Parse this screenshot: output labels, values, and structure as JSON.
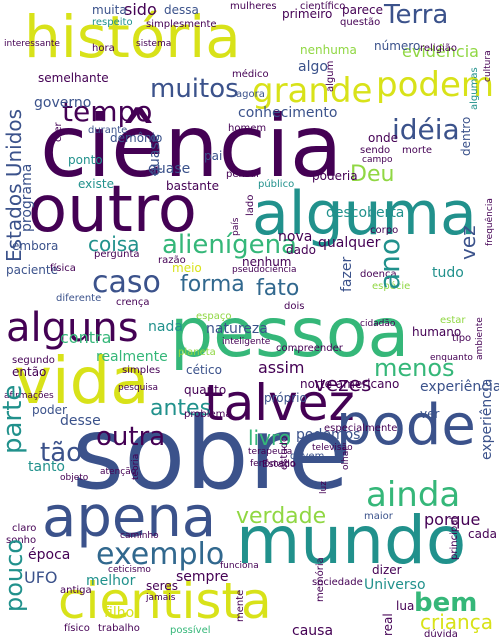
{
  "palette": {
    "background": "#ffffff",
    "purple_dark": "#440154",
    "indigo": "#3b528b",
    "blue": "#31688e",
    "teal": "#21918c",
    "green": "#35b779",
    "lime": "#90d743",
    "yellow": "#d8e219"
  },
  "words": {
    "ciencia": "ciência",
    "sobre": "sobre",
    "historia": "história",
    "pessoa": "pessoa",
    "mundo": "mundo",
    "alguma": "alguma",
    "outro": "outro",
    "vida": "vida",
    "talvez": "talvez",
    "pode": "pode",
    "apena": "apena",
    "cientista": "cientista",
    "alguns": "alguns",
    "podem": "podem",
    "terra": "Terra",
    "grande": "grande",
    "tempo": "tempo",
    "ideia": "idéia",
    "ainda": "ainda",
    "muitos": "muitos",
    "deu": "Deu",
    "alienigena": "alienígena",
    "caso": "caso",
    "forma": "forma",
    "fato": "fato",
    "exemplo": "exemplo",
    "verdade": "verdade",
    "coisa": "coisa",
    "menos": "menos",
    "vezes": "vezes",
    "antes": "antes",
    "livro": "livro",
    "outra": "outra",
    "tao": "tão",
    "parte": "parte",
    "pouco": "pouco",
    "bem": "bem",
    "crianca": "criança",
    "estados_unidos": "Estados Unidos",
    "porque": "porque",
    "ano": "ano",
    "vez": "vez",
    "evidencia": "evidência",
    "nenhuma": "nenhuma",
    "conhecimento": "conhecimento",
    "governo": "governo",
    "programa": "programa",
    "descoberta": "descoberta",
    "contra": "contra",
    "quase": "quase",
    "sido": "sido",
    "muita": "muita",
    "dessa": "dessa",
    "primeiro": "primeiro",
    "algo": "algo",
    "numero": "número",
    "realmente": "realmente",
    "assim": "assim",
    "experiencia": "experiência",
    "norte_americano": "norte americano",
    "humano": "humano",
    "ufo": "UFO",
    "epoca": "época",
    "sempre": "sempre",
    "melhor": "melhor",
    "universo": "Universo",
    "natureza": "natureza",
    "qualquer": "qualquer",
    "tudo": "tudo",
    "podemos": "podemos",
    "desse": "desse",
    "tanto": "tanto",
    "filho": "filho",
    "seres": "seres",
    "causa": "causa",
    "nada": "nada",
    "meio": "meio",
    "paciente": "paciente",
    "embora": "embora",
    "nenhum": "nenhum",
    "cetico": "cético",
    "planeta": "planeta",
    "ponto": "ponto",
    "demonio": "demônio",
    "bastante": "bastante",
    "poderia": "poderia",
    "fazer": "fazer",
    "nova": "nova",
    "dado": "dado",
    "existe": "existe",
    "quanto": "quanto",
    "proprio": "próprio",
    "durante": "durante",
    "semelhante": "semelhante",
    "respeito": "respeito",
    "simplesmente": "simplesmente",
    "mulheres": "mulheres",
    "cientifico": "científico",
    "parece": "parece",
    "questao": "questão",
    "religiao": "religião",
    "poder": "poder",
    "ver": "ver",
    "onde": "onde",
    "sendo": "sendo",
    "morte": "morte",
    "pai": "pai",
    "pensar": "pensar",
    "homem": "homem",
    "maior": "maior",
    "sociedade": "sociedade",
    "dizer": "dizer",
    "cada": "cada",
    "pergunta": "pergunta",
    "fisica": "física",
    "razao": "razão",
    "crenca": "crença",
    "diferente": "diferente",
    "entao": "então",
    "segundo": "segundo",
    "trabalho": "trabalho",
    "fisico": "físico",
    "possivel": "possível",
    "duvida": "dúvida",
    "interessante": "interessante",
    "hora": "hora",
    "medico": "médico",
    "corpo": "corpo",
    "doenca": "doença",
    "especie": "espécie",
    "publico": "público",
    "campo": "campo",
    "estar": "estar",
    "tipo": "tipo",
    "claro": "claro",
    "sonho": "sonho",
    "antiga": "antiga",
    "lua": "lua",
    "devem": "devem",
    "simples": "simples",
    "especialmente": "especialmente",
    "televisao": "televisão",
    "estado": "Estado",
    "compreender": "compreender",
    "dois": "dois",
    "geral": "geral",
    "algum": "algum",
    "espaco": "espaço",
    "agora": "agora",
    "sistema": "sistema",
    "olho": "olho",
    "mesmo": "mesmo",
    "vista": "vista",
    "lado": "lado",
    "caminho": "caminho",
    "pesquisa": "pesquisa",
    "mente": "mente",
    "certeza": "certeza",
    "quer": "quer",
    "luz": "luz",
    "ideias": "ideias",
    "estrela": "estrela",
    "memoria": "memória",
    "relato": "relato",
    "fenomeno": "fenômeno",
    "seculo": "século",
    "inteligente": "inteligente",
    "real": "real",
    "grupo": "grupo",
    "afirmacoes": "afirmações",
    "cidadao": "cidadão",
    "problema": "problema",
    "diz": "diz",
    "alem": "além",
    "crer": "crer",
    "encontrar": "encontrar",
    "atencao": "atenção",
    "ceu": "céu",
    "capaz": "capaz",
    "enquanto": "enquanto",
    "energia": "energia",
    "principal": "principal",
    "tese": "tese",
    "objeto": "objeto",
    "pensamento": "pensamento",
    "dentro": "dentro",
    "voce": "você",
    "termo": "termo",
    "historia2": "histórias",
    "mao": "mão",
    "deve": "deve",
    "terapeuta": "terapeuta",
    "carta": "carta",
    "quase2": "quase",
    "mil": "mil",
    "uso": "uso",
    "jovem": "jovem",
    "falta": "falta",
    "lugar": "lugar",
    "tambem": "também",
    "tais": "tais",
    "visto": "visto",
    "forte": "forte",
    "vento": "vento",
    "fonte": "fonte",
    "base": "base",
    "nome": "nome",
    "frequencia": "frequência",
    "estudo": "estudo",
    "alto": "alto",
    "pratica": "prática",
    "teoria": "teoria",
    "olhar": "olhar",
    "funciona": "funciona",
    "ceticismo": "ceticismo",
    "pais": "país",
    "jamais": "jamais",
    "meios": "meios",
    "resposta": "resposta",
    "fim": "fim",
    "logo": "logo",
    "pseudociencia": "pseudociência",
    "demais": "demais",
    "algumas": "algumas",
    "ambiente": "ambiente",
    "cultura": "cultura"
  }
}
